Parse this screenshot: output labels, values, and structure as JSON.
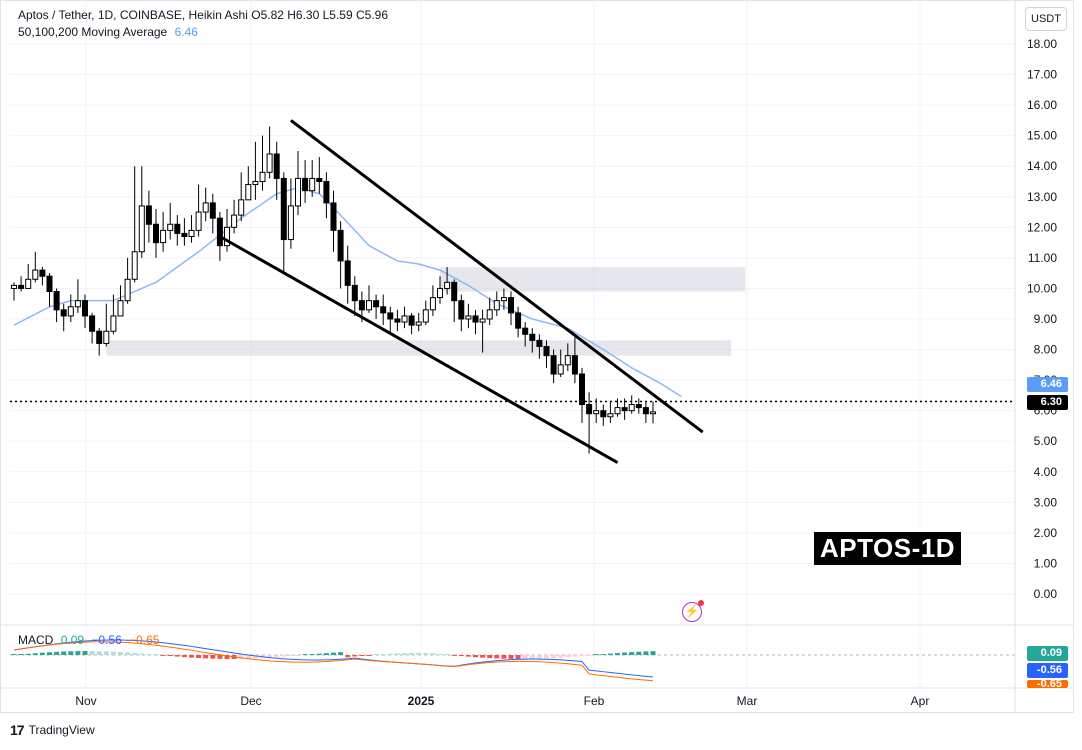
{
  "header": {
    "title": "Aptos / Tether, 1D, COINBASE, Heikin Ashi",
    "ohlc": "O5.82 H6.30 L5.59 C5.96",
    "ma_label": "50,100,200 Moving Average",
    "ma_value": "6.46"
  },
  "currency": "USDT",
  "watermark": "APTOS-1D",
  "footer": {
    "brand": "TradingView"
  },
  "colors": {
    "up": "#000000",
    "down": "#000000",
    "ma": "#90b8f0",
    "macd": "#2962ff",
    "signal": "#ff6d00",
    "hist_up": "#26a69a",
    "hist_up_light": "#b2dfdb",
    "hist_down": "#ef5350",
    "hist_down_light": "#ffcdd2"
  },
  "badges": {
    "ma": "6.46",
    "last": "6.30",
    "macd_hist": "0.09",
    "macd": "-0.56",
    "signal": "-0.65"
  },
  "macd_header": {
    "label": "MACD",
    "hist": "0.09",
    "macd": "−0.56",
    "signal": "−0.65"
  },
  "chart_data": {
    "type": "candlestick",
    "ylim": [
      0,
      18
    ],
    "y_ticks": [
      "18.00",
      "17.00",
      "16.00",
      "15.00",
      "14.00",
      "13.00",
      "12.00",
      "11.00",
      "10.00",
      "9.00",
      "8.00",
      "7.00",
      "6.00",
      "5.00",
      "4.00",
      "3.00",
      "2.00",
      "1.00",
      "0.00"
    ],
    "x_ticks": [
      "Nov",
      "Dec",
      "2025",
      "Feb",
      "Mar",
      "Apr"
    ],
    "last_price": 6.3,
    "ma_last": 6.46,
    "candles": [
      [
        10.0,
        10.1,
        10.2,
        9.6
      ],
      [
        10.1,
        10.0,
        10.4,
        9.9
      ],
      [
        10.0,
        10.3,
        10.8,
        10.0
      ],
      [
        10.3,
        10.6,
        11.2,
        10.2
      ],
      [
        10.6,
        10.4,
        10.7,
        10.1
      ],
      [
        10.4,
        9.9,
        10.5,
        9.4
      ],
      [
        9.9,
        9.3,
        10.0,
        8.9
      ],
      [
        9.3,
        9.1,
        9.5,
        8.6
      ],
      [
        9.1,
        9.4,
        9.8,
        8.9
      ],
      [
        9.4,
        9.6,
        10.3,
        9.2
      ],
      [
        9.6,
        9.1,
        9.8,
        8.7
      ],
      [
        9.1,
        8.6,
        9.2,
        8.2
      ],
      [
        8.6,
        8.2,
        8.7,
        7.8
      ],
      [
        8.2,
        8.6,
        9.5,
        8.1
      ],
      [
        8.6,
        9.1,
        9.8,
        8.5
      ],
      [
        9.1,
        9.6,
        10.1,
        9.1
      ],
      [
        9.6,
        10.3,
        11.0,
        9.5
      ],
      [
        10.3,
        11.2,
        14.0,
        10.2
      ],
      [
        11.2,
        12.7,
        14.0,
        11.0
      ],
      [
        12.7,
        12.1,
        13.2,
        11.5
      ],
      [
        12.1,
        11.5,
        12.6,
        11.0
      ],
      [
        11.5,
        11.9,
        12.5,
        11.2
      ],
      [
        11.9,
        12.1,
        12.8,
        11.6
      ],
      [
        12.1,
        11.8,
        12.4,
        11.4
      ],
      [
        11.8,
        11.7,
        12.3,
        11.4
      ],
      [
        11.7,
        11.9,
        12.4,
        11.5
      ],
      [
        11.9,
        12.5,
        13.4,
        11.7
      ],
      [
        12.5,
        12.8,
        13.3,
        12.2
      ],
      [
        12.8,
        12.3,
        13.1,
        11.8
      ],
      [
        12.3,
        11.4,
        12.5,
        10.9
      ],
      [
        11.4,
        12.0,
        12.6,
        11.2
      ],
      [
        12.0,
        12.4,
        12.9,
        11.8
      ],
      [
        12.4,
        12.9,
        13.8,
        12.2
      ],
      [
        12.9,
        13.4,
        14.0,
        12.9
      ],
      [
        13.4,
        13.5,
        14.8,
        12.9
      ],
      [
        13.5,
        13.8,
        15.0,
        13.2
      ],
      [
        13.8,
        14.4,
        15.3,
        13.6
      ],
      [
        14.4,
        13.6,
        14.8,
        12.9
      ],
      [
        13.6,
        11.6,
        13.8,
        10.5
      ],
      [
        11.6,
        12.7,
        13.6,
        11.3
      ],
      [
        12.7,
        13.6,
        14.5,
        12.4
      ],
      [
        13.6,
        13.2,
        14.2,
        12.8
      ],
      [
        13.2,
        13.6,
        14.2,
        13.0
      ],
      [
        13.6,
        13.5,
        14.3,
        13.1
      ],
      [
        13.5,
        12.8,
        13.8,
        12.3
      ],
      [
        12.8,
        11.9,
        13.2,
        11.2
      ],
      [
        11.9,
        10.9,
        12.2,
        10.0
      ],
      [
        10.9,
        10.1,
        11.4,
        9.5
      ],
      [
        10.1,
        9.6,
        10.4,
        9.1
      ],
      [
        9.6,
        9.3,
        9.9,
        8.9
      ],
      [
        9.3,
        9.6,
        10.1,
        9.2
      ],
      [
        9.6,
        9.4,
        9.8,
        9.0
      ],
      [
        9.4,
        9.2,
        9.8,
        8.8
      ],
      [
        9.2,
        9.0,
        9.4,
        8.5
      ],
      [
        9.0,
        8.9,
        9.3,
        8.6
      ],
      [
        8.9,
        9.1,
        9.4,
        8.7
      ],
      [
        9.1,
        8.8,
        9.2,
        8.5
      ],
      [
        8.8,
        8.9,
        9.2,
        8.6
      ],
      [
        8.9,
        9.3,
        9.6,
        8.8
      ],
      [
        9.3,
        9.7,
        10.1,
        9.1
      ],
      [
        9.7,
        10.0,
        10.4,
        9.5
      ],
      [
        10.0,
        10.2,
        10.7,
        9.8
      ],
      [
        10.2,
        9.6,
        10.3,
        8.9
      ],
      [
        9.6,
        9.0,
        9.8,
        8.6
      ],
      [
        9.0,
        9.1,
        9.5,
        8.7
      ],
      [
        9.1,
        8.9,
        9.3,
        8.5
      ],
      [
        8.9,
        9.0,
        9.3,
        7.9
      ],
      [
        9.0,
        9.3,
        9.7,
        8.8
      ],
      [
        9.3,
        9.6,
        9.9,
        9.1
      ],
      [
        9.6,
        9.7,
        10.0,
        9.3
      ],
      [
        9.7,
        9.2,
        9.9,
        8.8
      ],
      [
        9.2,
        8.7,
        9.4,
        8.4
      ],
      [
        8.7,
        8.5,
        8.9,
        8.1
      ],
      [
        8.5,
        8.3,
        8.7,
        7.9
      ],
      [
        8.3,
        8.1,
        8.5,
        7.7
      ],
      [
        8.1,
        7.8,
        8.3,
        7.4
      ],
      [
        7.8,
        7.2,
        8.0,
        6.9
      ],
      [
        7.2,
        7.5,
        8.0,
        7.1
      ],
      [
        7.5,
        7.8,
        8.2,
        7.3
      ],
      [
        7.8,
        7.2,
        8.4,
        6.9
      ],
      [
        7.2,
        6.2,
        7.4,
        5.6
      ],
      [
        6.2,
        5.9,
        6.6,
        4.6
      ],
      [
        5.9,
        6.0,
        6.4,
        5.6
      ],
      [
        6.0,
        5.8,
        6.2,
        5.5
      ],
      [
        5.8,
        5.9,
        6.3,
        5.6
      ],
      [
        5.9,
        6.1,
        6.4,
        5.8
      ],
      [
        6.1,
        6.0,
        6.4,
        5.7
      ],
      [
        6.0,
        6.2,
        6.5,
        5.9
      ],
      [
        6.2,
        6.1,
        6.4,
        5.9
      ],
      [
        6.1,
        5.9,
        6.3,
        5.6
      ],
      [
        5.9,
        5.96,
        6.3,
        5.59
      ]
    ],
    "ma": [
      [
        0,
        8.8
      ],
      [
        5,
        9.4
      ],
      [
        8,
        9.6
      ],
      [
        14,
        9.6
      ],
      [
        20,
        10.2
      ],
      [
        26,
        11.2
      ],
      [
        32,
        12.3
      ],
      [
        37,
        13.1
      ],
      [
        40,
        13.3
      ],
      [
        43,
        13.1
      ],
      [
        46,
        12.4
      ],
      [
        50,
        11.4
      ],
      [
        54,
        10.9
      ],
      [
        57,
        10.8
      ],
      [
        60,
        10.6
      ],
      [
        64,
        10.1
      ],
      [
        68,
        9.5
      ],
      [
        73,
        9.0
      ],
      [
        78,
        8.7
      ],
      [
        83,
        8.0
      ],
      [
        87,
        7.4
      ],
      [
        91,
        6.9
      ],
      [
        94,
        6.46
      ]
    ],
    "channel_upper": [
      [
        39,
        15.5
      ],
      [
        97,
        5.3
      ]
    ],
    "channel_lower": [
      [
        29,
        11.7
      ],
      [
        85,
        4.3
      ]
    ],
    "zones": [
      {
        "from": 60,
        "to": 103,
        "low": 9.9,
        "high": 10.7
      },
      {
        "from": 13,
        "to": 101,
        "low": 7.8,
        "high": 8.3
      }
    ]
  }
}
